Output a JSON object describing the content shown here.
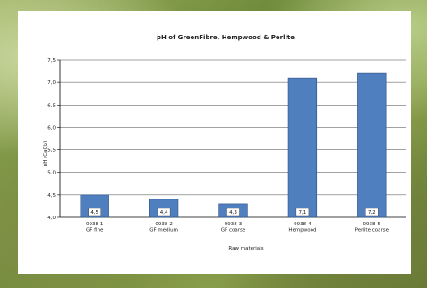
{
  "chart_data": {
    "type": "bar",
    "title": "pH of GreenFibre, Hempwood & Perlite",
    "xlabel": "Raw materials",
    "ylabel": "pH (CaCl₂)",
    "categories": [
      [
        "0938-1",
        "GF fine"
      ],
      [
        "0938-2",
        "GF medium"
      ],
      [
        "0938-3",
        "GF coarse"
      ],
      [
        "0938-4",
        "Hempwood"
      ],
      [
        "0938-5",
        "Perlite coarse"
      ]
    ],
    "values": [
      4.5,
      4.4,
      4.3,
      7.1,
      7.2
    ],
    "data_labels": [
      "4,5",
      "4,4",
      "4,3",
      "7,1",
      "7,2"
    ],
    "ylim": [
      4.0,
      7.5
    ],
    "yticks": [
      "4,0",
      "4,5",
      "5,0",
      "5,5",
      "6,0",
      "6,5",
      "7,0",
      "7,5"
    ],
    "grid": true,
    "bar_color": "#4f7fbf",
    "bar_edge": "#2c4f80"
  }
}
